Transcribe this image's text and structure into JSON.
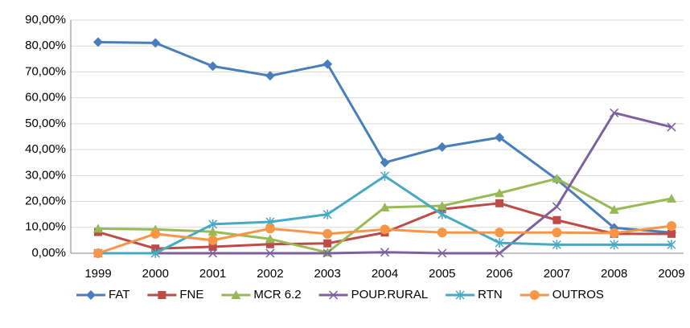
{
  "chart_data": {
    "type": "line",
    "categories": [
      "1999",
      "2000",
      "2001",
      "2002",
      "2003",
      "2004",
      "2005",
      "2006",
      "2007",
      "2008",
      "2009"
    ],
    "series": [
      {
        "name": "FAT",
        "color": "#4a7ebb",
        "marker": "diamond",
        "values": [
          81.5,
          81.2,
          72.2,
          68.5,
          73,
          35,
          41,
          44.7,
          28.5,
          9.8,
          8
        ]
      },
      {
        "name": "FNE",
        "color": "#be4b48",
        "marker": "square",
        "values": [
          8.2,
          1.8,
          2.5,
          3.5,
          3.8,
          8,
          17,
          19.3,
          12.8,
          7.5,
          7.5
        ]
      },
      {
        "name": "MCR 6.2",
        "color": "#98b954",
        "marker": "triangle",
        "values": [
          9.5,
          9.2,
          8.3,
          5.5,
          0.3,
          17.7,
          18.3,
          23.2,
          28.8,
          16.8,
          21.1
        ]
      },
      {
        "name": "POUP.RURAL",
        "color": "#7d60a0",
        "marker": "x",
        "values": [
          0,
          0,
          0,
          0,
          0,
          0.4,
          0,
          0,
          18,
          54.2,
          48.7
        ]
      },
      {
        "name": "RTN",
        "color": "#46aac5",
        "marker": "star",
        "values": [
          0,
          0,
          11.2,
          12.1,
          15,
          29.8,
          15,
          4,
          3.3,
          3.3,
          3.3
        ]
      },
      {
        "name": "OUTROS",
        "color": "#f79646",
        "marker": "circle",
        "values": [
          0,
          7.5,
          5,
          9.5,
          7.5,
          9.2,
          8,
          8,
          8,
          7.8,
          10.5
        ]
      }
    ],
    "ylim": [
      0,
      90
    ],
    "yticks": [
      {
        "value": 0,
        "label": "0,00%"
      },
      {
        "value": 10,
        "label": "10,00%"
      },
      {
        "value": 20,
        "label": "20,00%"
      },
      {
        "value": 30,
        "label": "30,00%"
      },
      {
        "value": 40,
        "label": "40,00%"
      },
      {
        "value": 50,
        "label": "50,00%"
      },
      {
        "value": 60,
        "label": "60,00%"
      },
      {
        "value": 70,
        "label": "70,00%"
      },
      {
        "value": 80,
        "label": "80,00%"
      },
      {
        "value": 90,
        "label": "90,00%"
      }
    ],
    "grid": true,
    "legend": "bottom"
  }
}
